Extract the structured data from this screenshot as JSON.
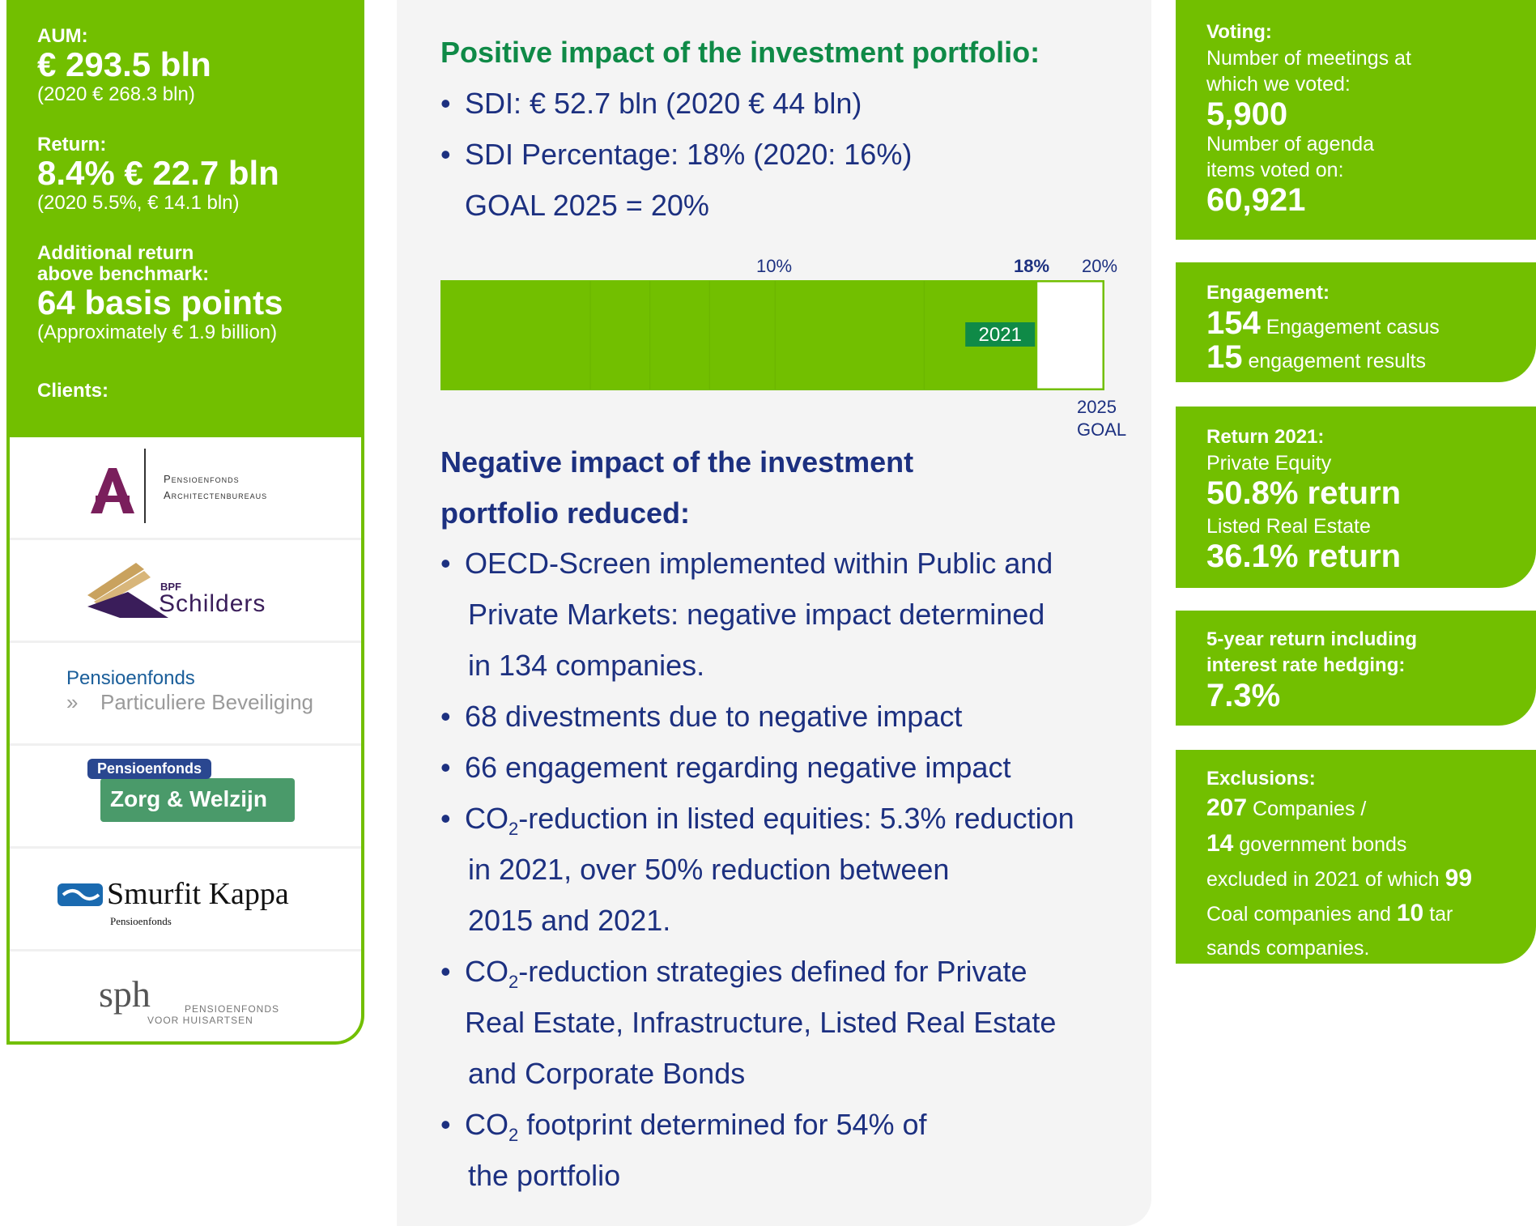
{
  "left": {
    "aum_label": "AUM:",
    "aum_value": "€ 293.5 bln",
    "aum_prev": "(2020 € 268.3 bln)",
    "return_label": "Return:",
    "return_value": "8.4% € 22.7 bln",
    "return_prev": "(2020 5.5%, € 14.1 bln)",
    "additional_label_1": "Additional return",
    "additional_label_2": "above benchmark:",
    "additional_value": "64 basis points",
    "additional_sub": "(Approximately € 1.9 billion)",
    "clients_label": "Clients:",
    "logos": {
      "architect_1": "Pensioenfonds",
      "architect_2": "Architectenbureaus",
      "schilders_small": "BPF",
      "schilders": "Schilders",
      "beveiliging_1": "Pensioenfonds",
      "beveiliging_2": "Particuliere Beveiliging",
      "zorg_1": "Pensioenfonds",
      "zorg_2": "Zorg & Welzijn",
      "kappa_1": "Smurfit Kappa",
      "kappa_2": "Pensioenfonds",
      "sph_1": "sph",
      "sph_2": "PENSIOENFONDS",
      "sph_3": "VOOR HUISARTSEN"
    }
  },
  "middle": {
    "positive_heading": "Positive impact of the investment portfolio:",
    "positive_bullets": [
      "SDI: € 52.7 bln (2020 € 44 bln)",
      "SDI Percentage: 18% (2020: 16%)",
      "GOAL 2025 = 20%"
    ],
    "negative_heading_1": "Negative impact of the investment",
    "negative_heading_2": "portfolio reduced:",
    "negative_bullets": {
      "b1_l1": "OECD-Screen implemented within Public and",
      "b1_l2": "Private Markets: negative impact determined",
      "b1_l3": "in 134 companies.",
      "b2": "68 divestments due to negative impact",
      "b3": "66 engagement regarding negative impact",
      "b4_pre": "CO",
      "b4_sub": "2",
      "b4_post": "-reduction in listed equities: 5.3% reduction",
      "b4_l2": "in 2021, over 50% reduction between",
      "b4_l3": "2015 and 2021.",
      "b5_pre": "CO",
      "b5_sub": "2",
      "b5_post": "-reduction strategies defined for Private",
      "b5_l2": "Real Estate, Infrastructure, Listed Real Estate",
      "b5_l3": "and Corporate Bonds",
      "b6_pre": "CO",
      "b6_sub": "2",
      "b6_post": " footprint determined for 54% of",
      "b6_l2": "the portfolio"
    }
  },
  "chart_data": {
    "type": "bar",
    "orientation": "horizontal",
    "values": [
      18
    ],
    "max": 20,
    "tick_labels": [
      "10%",
      "18%",
      "20%"
    ],
    "bar_label": "2021",
    "goal_label_1": "2025",
    "goal_label_2": "GOAL",
    "colors": {
      "fill": "#72bf00",
      "tag": "#0f8a47",
      "outline": "#72bf00"
    }
  },
  "right": {
    "voting_label": "Voting:",
    "voting_t1": "Number of meetings at",
    "voting_t2": "which we voted:",
    "voting_v1": "5,900",
    "voting_t3": "Number of agenda",
    "voting_t4": "items voted on:",
    "voting_v2": "60,921",
    "engagement_label": "Engagement:",
    "engagement_n1": "154",
    "engagement_t1": " Engagement casus",
    "engagement_n2": "15",
    "engagement_t2": " engagement results",
    "return_label": "Return 2021:",
    "return_t1": "Private Equity",
    "return_v1": "50.8% return",
    "return_t2": "Listed Real Estate",
    "return_v2": "36.1% return",
    "five_label_1": "5-year return including",
    "five_label_2": "interest rate hedging:",
    "five_value": "7.3%",
    "excl_label": "Exclusions:",
    "excl_n1": "207",
    "excl_t1": " Companies /",
    "excl_n2": "14",
    "excl_t2": " government bonds",
    "excl_t3": "excluded in 2021 of which ",
    "excl_n3": "99",
    "excl_t4": "Coal companies and ",
    "excl_n4": "10",
    "excl_t5": " tar",
    "excl_t6": "sands companies."
  },
  "colors": {
    "green": "#72bf00",
    "dark_green": "#0f8a47",
    "navy": "#1c3080",
    "panel": "#f4f4f4"
  }
}
